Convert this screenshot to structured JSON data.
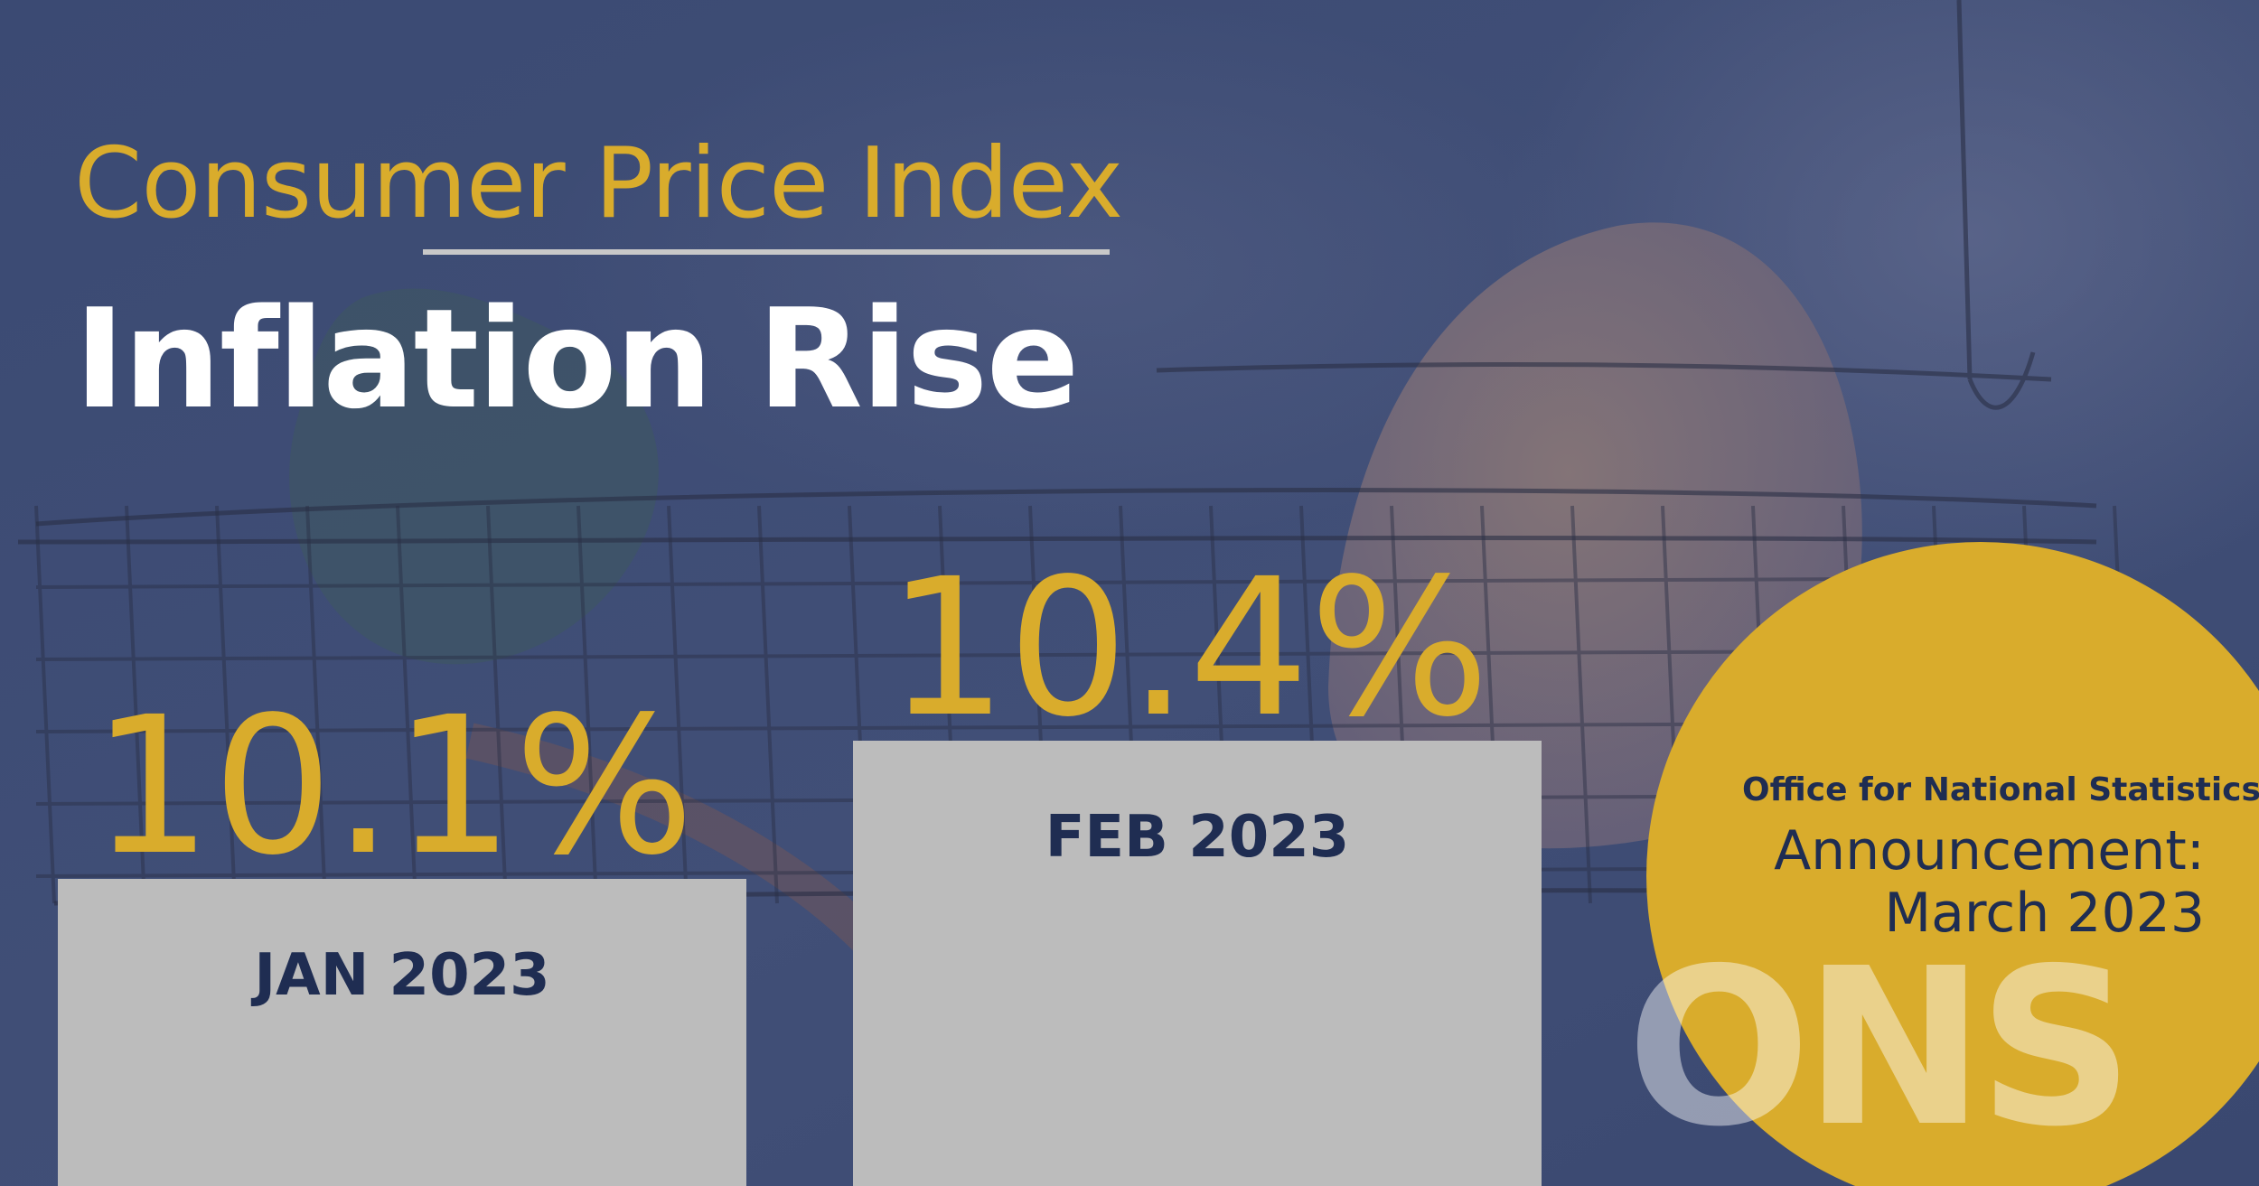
{
  "header": {
    "subtitle": "Consumer Price Index",
    "title": "Inflation Rise"
  },
  "badge": {
    "organization": "Office for National Statistics",
    "announcement_line1": "Announcement:",
    "announcement_line2": "March 2023",
    "logo_text": "ONS"
  },
  "colors": {
    "background": "#3a4a74",
    "accent_gold": "#d9ac2c",
    "bar_gray": "#bcbcbc",
    "bar_text_navy": "#1f2d52",
    "title_white": "#ffffff",
    "divider": "#c8c8c8"
  },
  "chart_data": {
    "type": "bar",
    "categories": [
      "JAN 2023",
      "FEB 2023"
    ],
    "values": [
      10.1,
      10.4
    ],
    "value_labels": [
      "10.1%",
      "10.4%"
    ],
    "title": "",
    "xlabel": "",
    "ylabel": ""
  }
}
